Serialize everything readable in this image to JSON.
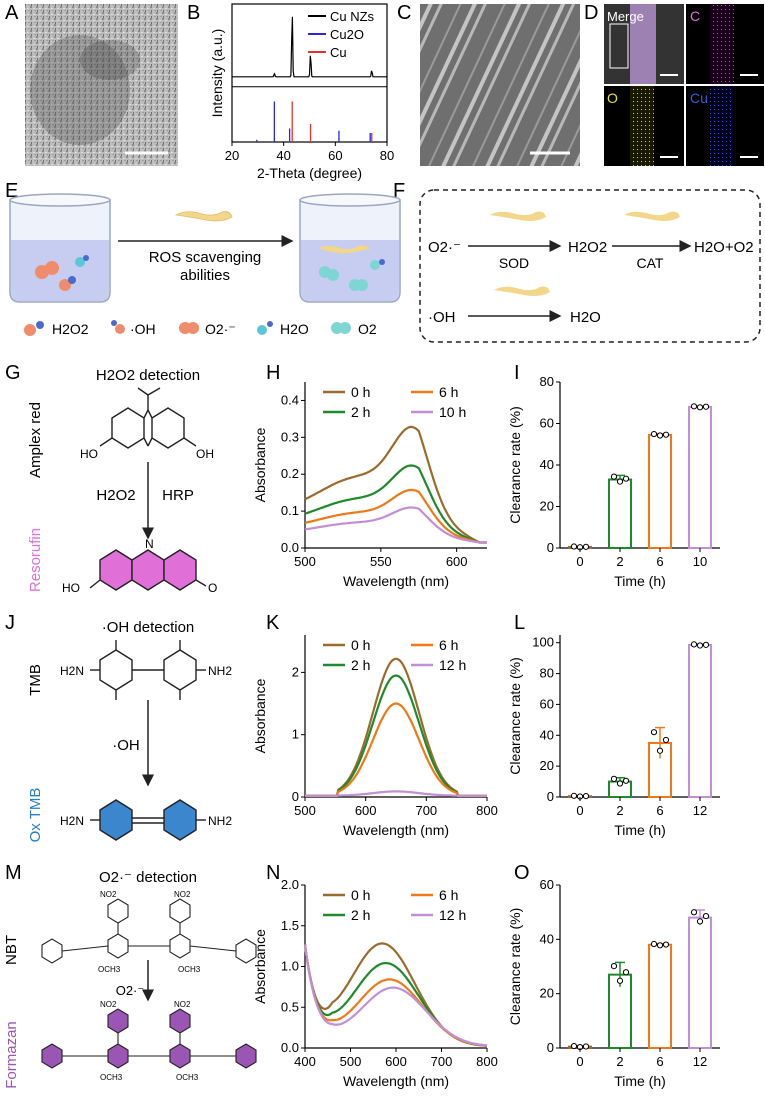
{
  "panel_labels": [
    "A",
    "B",
    "C",
    "D",
    "E",
    "F",
    "G",
    "H",
    "I",
    "J",
    "K",
    "L",
    "M",
    "N",
    "O"
  ],
  "colors": {
    "brown": "#9b6b2e",
    "green": "#1f8a2b",
    "orange": "#f07818",
    "purple": "#c18fd6",
    "magenta": "#e070d8",
    "blue": "#2a7fc8",
    "violet": "#9a55b5",
    "black": "#000000",
    "red": "#e53030",
    "navy": "#2a2ad0"
  },
  "panelD": {
    "merge": "Merge",
    "c": "C",
    "o": "O",
    "cu": "Cu"
  },
  "panelE": {
    "arrow_label_1": "ROS scavenging",
    "arrow_label_2": "abilities",
    "legend": {
      "h2o2": "H2O2",
      "oh": "·OH",
      "o2r": "O2·⁻",
      "h2o": "H2O",
      "o2": "O2"
    }
  },
  "panelF": {
    "o2r": "O2·⁻",
    "sod": "SOD",
    "h2o2": "H2O2",
    "cat": "CAT",
    "prod": "H2O+O2",
    "oh": "·OH",
    "h2o": "H2O"
  },
  "panelG": {
    "title": "H2O2 detection",
    "top_label": "Amplex red",
    "bottom_label": "Resorufin",
    "reagent": "H2O2",
    "enzyme": "HRP",
    "ho": "HO",
    "oh": "OH",
    "o": "O",
    "n": "N"
  },
  "panelJ": {
    "title": "·OH detection",
    "top_label": "TMB",
    "bottom_label": "Ox TMB",
    "reagent": "·OH",
    "h2n": "H2N",
    "nh2": "NH2"
  },
  "panelM": {
    "title": "O2·⁻ detection",
    "top_label": "NBT",
    "bottom_label": "Formazan",
    "reagent": "O2·⁻",
    "no2": "NO2",
    "och3": "OCH3"
  },
  "chart_data": [
    {
      "id": "B",
      "type": "line",
      "title": "",
      "xlabel": "2-Theta (degree)",
      "ylabel": "Intensity (a.u.)",
      "xlim": [
        20,
        80
      ],
      "xticks": [
        20,
        40,
        60,
        80
      ],
      "legend": [
        "Cu NZs",
        "Cu2O",
        "Cu"
      ],
      "legend_position": "top-right",
      "series": [
        {
          "name": "Cu NZs",
          "peaks": [
            [
              36.4,
              0.05
            ],
            [
              43.3,
              1.0
            ],
            [
              50.4,
              0.35
            ],
            [
              74.1,
              0.1
            ]
          ]
        },
        {
          "name": "Cu2O",
          "sticks": [
            [
              29.6,
              0.05
            ],
            [
              36.4,
              0.9
            ],
            [
              42.3,
              0.3
            ],
            [
              61.4,
              0.25
            ],
            [
              73.5,
              0.2
            ]
          ]
        },
        {
          "name": "Cu",
          "sticks": [
            [
              43.3,
              0.9
            ],
            [
              50.4,
              0.4
            ],
            [
              74.1,
              0.2
            ]
          ]
        }
      ]
    },
    {
      "id": "H",
      "type": "line",
      "xlabel": "Wavelength (nm)",
      "ylabel": "Absorbance",
      "xlim": [
        500,
        620
      ],
      "ylim": [
        0,
        0.45
      ],
      "xticks": [
        500,
        550,
        600
      ],
      "yticks": [
        0.0,
        0.1,
        0.2,
        0.3,
        0.4
      ],
      "legend": [
        "0 h",
        "2 h",
        "6 h",
        "10 h"
      ],
      "legend_position": "top",
      "series": [
        {
          "name": "0 h",
          "peak": 0.33
        },
        {
          "name": "2 h",
          "peak": 0.22
        },
        {
          "name": "6 h",
          "peak": 0.15
        },
        {
          "name": "10 h",
          "peak": 0.1
        }
      ]
    },
    {
      "id": "I",
      "type": "bar",
      "xlabel": "Time (h)",
      "ylabel": "Clearance rate  (%)",
      "categories": [
        "0",
        "2",
        "6",
        "10"
      ],
      "values": [
        0.5,
        33,
        54.5,
        68
      ],
      "errors": [
        0.3,
        2,
        0.6,
        0.4
      ],
      "ylim": [
        0,
        80
      ],
      "yticks": [
        0,
        20,
        40,
        60,
        80
      ]
    },
    {
      "id": "K",
      "type": "line",
      "xlabel": "Wavelength (nm)",
      "ylabel": "Absorbance",
      "xlim": [
        500,
        800
      ],
      "ylim": [
        0,
        2.6
      ],
      "xticks": [
        500,
        600,
        700,
        800
      ],
      "yticks": [
        0,
        1,
        2
      ],
      "legend": [
        "0 h",
        "2 h",
        "6 h",
        "12 h"
      ],
      "legend_position": "top",
      "series": [
        {
          "name": "0 h",
          "peak": 2.2
        },
        {
          "name": "2 h",
          "peak": 1.93
        },
        {
          "name": "6 h",
          "peak": 1.48
        },
        {
          "name": "12 h",
          "peak": 0.07
        }
      ]
    },
    {
      "id": "L",
      "type": "bar",
      "xlabel": "Time (h)",
      "ylabel": "Clearance rate  (%)",
      "categories": [
        "0",
        "2",
        "6",
        "12"
      ],
      "values": [
        0.5,
        10,
        35,
        98.5
      ],
      "errors": [
        0.4,
        2.5,
        10,
        0.6
      ],
      "ylim": [
        0,
        105
      ],
      "yticks": [
        0,
        20,
        40,
        60,
        80,
        100
      ]
    },
    {
      "id": "N",
      "type": "line",
      "xlabel": "Wavelength (nm)",
      "ylabel": "Absorbance",
      "xlim": [
        400,
        800
      ],
      "ylim": [
        0,
        2.0
      ],
      "xticks": [
        400,
        500,
        600,
        700,
        800
      ],
      "yticks": [
        0.0,
        0.5,
        1.0,
        1.5,
        2.0
      ],
      "legend": [
        "0 h",
        "2 h",
        "6 h",
        "12 h"
      ],
      "legend_position": "top",
      "series": [
        {
          "name": "0 h",
          "peak": 1.26
        },
        {
          "name": "2 h",
          "peak": 1.02
        },
        {
          "name": "6 h",
          "peak": 0.82
        },
        {
          "name": "12 h",
          "peak": 0.72
        }
      ]
    },
    {
      "id": "O",
      "type": "bar",
      "xlabel": "Time (h)",
      "ylabel": "Clearance rate  (%)",
      "categories": [
        "0",
        "2",
        "6",
        "12"
      ],
      "values": [
        0.5,
        27,
        38,
        48
      ],
      "errors": [
        0.3,
        4.5,
        0.4,
        2.8
      ],
      "ylim": [
        0,
        60
      ],
      "yticks": [
        0,
        20,
        40,
        60
      ]
    }
  ]
}
